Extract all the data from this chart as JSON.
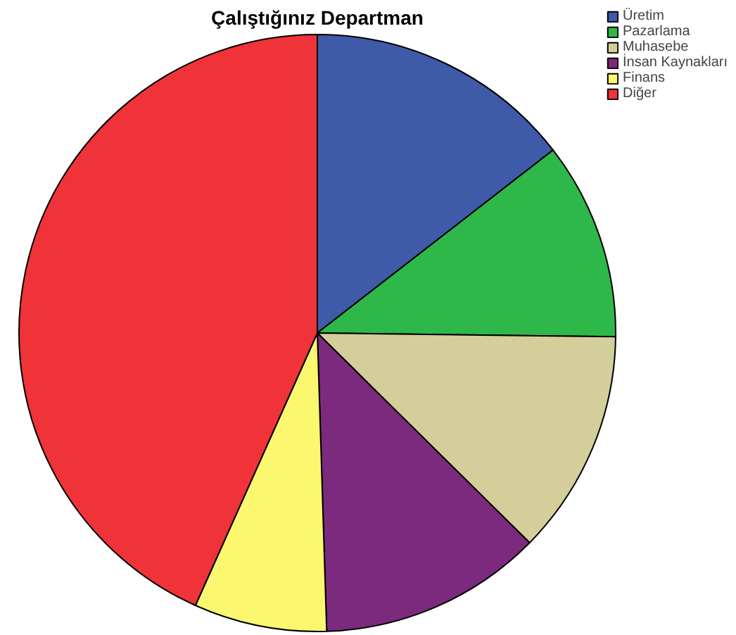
{
  "chart_data": {
    "type": "pie",
    "title": "Çalıştığınız Departman",
    "categories": [
      "Üretim",
      "Pazarlama",
      "Muhasebe",
      "İnsan Kaynakları",
      "Finans",
      "Diğer"
    ],
    "values": [
      14.5,
      10.7,
      12.2,
      12.1,
      7.2,
      43.3
    ],
    "colors": [
      "#3f5aa8",
      "#2eb84a",
      "#d4cf9a",
      "#7b2a7e",
      "#fbf76f",
      "#ef3338"
    ],
    "legend": "top right"
  }
}
